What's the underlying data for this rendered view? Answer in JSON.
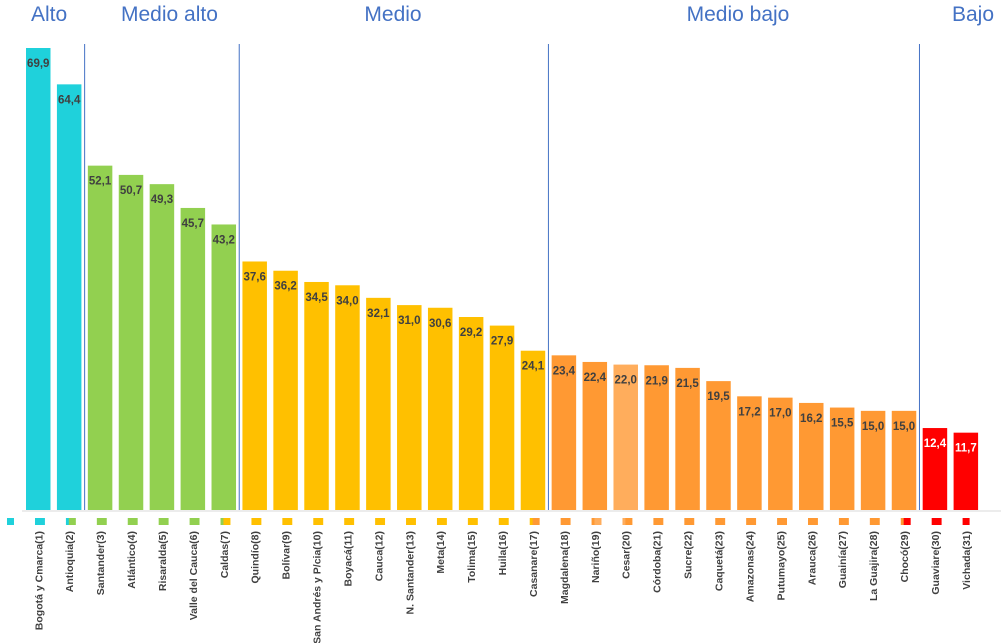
{
  "chart_data": {
    "type": "bar",
    "title": "",
    "xlabel": "",
    "ylabel": "",
    "ylim": [
      0,
      72
    ],
    "grid": false,
    "legend": "none",
    "groups": [
      {
        "label": "Alto",
        "start": 0,
        "end": 1,
        "color": "#1FD1DB",
        "label_color": "#404040"
      },
      {
        "label": "Medio alto",
        "start": 2,
        "end": 6,
        "color": "#92D050",
        "label_color": "#404040"
      },
      {
        "label": "Medio",
        "start": 7,
        "end": 16,
        "color": "#FFC000",
        "label_color": "#404040"
      },
      {
        "label": "Medio bajo",
        "start": 17,
        "end": 28,
        "color": "#FF9933",
        "label_color": "#404040"
      },
      {
        "label": "Bajo",
        "start": 29,
        "end": 30,
        "color": "#FF0000",
        "label_color": "#ffffff"
      }
    ],
    "highlight": {
      "index": 19,
      "color": "#FFAD5C"
    },
    "categories": [
      "Bogotá y Cmarca(1)",
      "Antioquia(2)",
      "Santander(3)",
      "Atlántico(4)",
      "Risaralda(5)",
      "Valle del Cauca(6)",
      "Caldas(7)",
      "Quindío(8)",
      "Bolívar(9)",
      "San Andrés y P/cia(10)",
      "Boyacá(11)",
      "Cauca(12)",
      "N. Santander(13)",
      "Meta(14)",
      "Tolima(15)",
      "Huila(16)",
      "Casanare(17)",
      "Magdalena(18)",
      "Nariño(19)",
      "Cesar(20)",
      "Córdoba(21)",
      "Sucre(22)",
      "Caquetá(23)",
      "Amazonas(24)",
      "Putumayo(25)",
      "Arauca(26)",
      "Guainía(27)",
      "La Guajira(28)",
      "Chocó(29)",
      "Guaviare(30)",
      "Vichada(31)"
    ],
    "values": [
      69.9,
      64.4,
      52.1,
      50.7,
      49.3,
      45.7,
      43.2,
      37.6,
      36.2,
      34.5,
      34.0,
      32.1,
      31.0,
      30.6,
      29.2,
      27.9,
      24.1,
      23.4,
      22.4,
      22.0,
      21.9,
      21.5,
      19.5,
      17.2,
      17.0,
      16.2,
      15.5,
      15.0,
      15.0,
      12.4,
      11.7
    ],
    "value_labels": [
      "69,9",
      "64,4",
      "52,1",
      "50,7",
      "49,3",
      "45,7",
      "43,2",
      "37,6",
      "36,2",
      "34,5",
      "34,0",
      "32,1",
      "31,0",
      "30,6",
      "29,2",
      "27,9",
      "24,1",
      "23,4",
      "22,4",
      "22,0",
      "21,9",
      "21,5",
      "19,5",
      "17,2",
      "17,0",
      "16,2",
      "15,5",
      "15,0",
      "15,0",
      "12,4",
      "11,7"
    ]
  }
}
